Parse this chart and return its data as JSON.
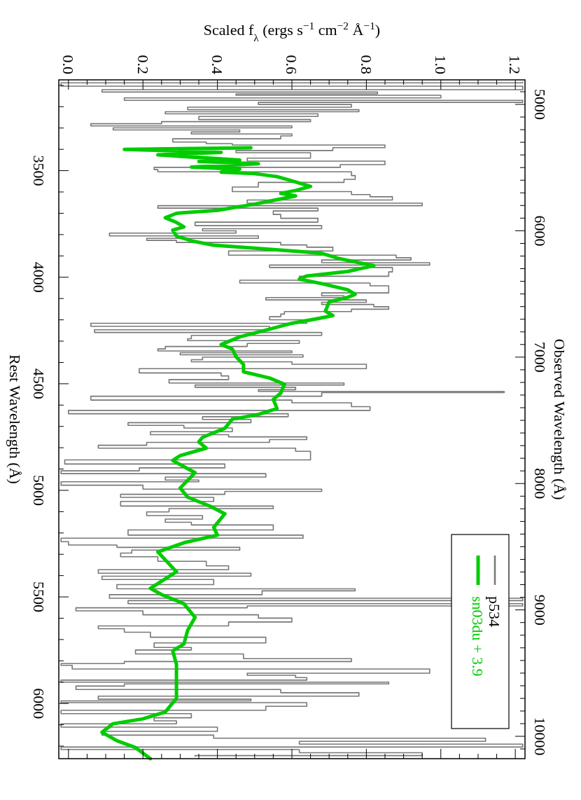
{
  "chart_data": {
    "type": "line",
    "xlabel": "Scaled f$_{λ}$ (ergs s$^{−1}$ cm$^{−2}$ Å$^{−1}$)",
    "ylabel": "Rest Wavelength (Å)",
    "y2label": "Observed Wavelength (Å)",
    "ylim": [
      6259,
      3074
    ],
    "yticks": [
      {
        "value": 3100,
        "label": null
      },
      {
        "value": 3200,
        "label": null
      },
      {
        "value": 3300,
        "label": null
      },
      {
        "value": 3400,
        "label": null
      },
      3500,
      {
        "value": 3600,
        "label": null
      },
      {
        "value": 3700,
        "label": null
      },
      {
        "value": 3800,
        "label": null
      },
      {
        "value": 3900,
        "label": null
      },
      4000,
      {
        "value": 4100,
        "label": null
      },
      {
        "value": 4200,
        "label": null
      },
      {
        "value": 4300,
        "label": null
      },
      {
        "value": 4400,
        "label": null
      },
      4500,
      {
        "value": 4600,
        "label": null
      },
      {
        "value": 4700,
        "label": null
      },
      {
        "value": 4800,
        "label": null
      },
      {
        "value": 4900,
        "label": null
      },
      5000,
      {
        "value": 5100,
        "label": null
      },
      {
        "value": 5200,
        "label": null
      },
      {
        "value": 5300,
        "label": null
      },
      {
        "value": 5400,
        "label": null
      },
      5500,
      {
        "value": 5600,
        "label": null
      },
      {
        "value": 5700,
        "label": null
      },
      {
        "value": 5800,
        "label": null
      },
      {
        "value": 5900,
        "label": null
      },
      6000,
      {
        "value": 6100,
        "label": null
      },
      {
        "value": 6200,
        "label": null
      }
    ],
    "y2lim": [
      10177,
      4806
    ],
    "y2ticks": [
      {
        "value": 4900,
        "label": null
      },
      5000,
      {
        "value": 5100,
        "label": null
      },
      {
        "value": 5200,
        "label": null
      },
      {
        "value": 5300,
        "label": null
      },
      {
        "value": 5400,
        "label": null
      },
      {
        "value": 5500,
        "label": null
      },
      {
        "value": 5600,
        "label": null
      },
      {
        "value": 5700,
        "label": null
      },
      {
        "value": 5800,
        "label": null
      },
      {
        "value": 5900,
        "label": null
      },
      6000,
      {
        "value": 6100,
        "label": null
      },
      {
        "value": 6200,
        "label": null
      },
      {
        "value": 6300,
        "label": null
      },
      {
        "value": 6400,
        "label": null
      },
      {
        "value": 6500,
        "label": null
      },
      {
        "value": 6600,
        "label": null
      },
      {
        "value": 6700,
        "label": null
      },
      {
        "value": 6800,
        "label": null
      },
      {
        "value": 6900,
        "label": null
      },
      7000,
      {
        "value": 7100,
        "label": null
      },
      {
        "value": 7200,
        "label": null
      },
      {
        "value": 7300,
        "label": null
      },
      {
        "value": 7400,
        "label": null
      },
      {
        "value": 7500,
        "label": null
      },
      {
        "value": 7600,
        "label": null
      },
      {
        "value": 7700,
        "label": null
      },
      {
        "value": 7800,
        "label": null
      },
      {
        "value": 7900,
        "label": null
      },
      8000,
      {
        "value": 8100,
        "label": null
      },
      {
        "value": 8200,
        "label": null
      },
      {
        "value": 8300,
        "label": null
      },
      {
        "value": 8400,
        "label": null
      },
      {
        "value": 8500,
        "label": null
      },
      {
        "value": 8600,
        "label": null
      },
      {
        "value": 8700,
        "label": null
      },
      {
        "value": 8800,
        "label": null
      },
      {
        "value": 8900,
        "label": null
      },
      9000,
      {
        "value": 9100,
        "label": null
      },
      {
        "value": 9200,
        "label": null
      },
      {
        "value": 9300,
        "label": null
      },
      {
        "value": 9400,
        "label": null
      },
      {
        "value": 9500,
        "label": null
      },
      {
        "value": 9600,
        "label": null
      },
      {
        "value": 9700,
        "label": null
      },
      {
        "value": 9800,
        "label": null
      },
      {
        "value": 9900,
        "label": null
      },
      10000,
      {
        "value": 10100,
        "label": null
      }
    ],
    "xlim": [
      -0.026,
      1.226
    ],
    "xticks": [
      {
        "value": 0,
        "label": "0.0"
      },
      {
        "value": 0.05,
        "label": null
      },
      {
        "value": 0.1,
        "label": null
      },
      {
        "value": 0.15,
        "label": null
      },
      {
        "value": 0.2,
        "label": "0.2"
      },
      {
        "value": 0.25,
        "label": null
      },
      {
        "value": 0.3,
        "label": null
      },
      {
        "value": 0.35,
        "label": null
      },
      {
        "value": 0.4,
        "label": "0.4"
      },
      {
        "value": 0.45,
        "label": null
      },
      {
        "value": 0.5,
        "label": null
      },
      {
        "value": 0.55,
        "label": null
      },
      {
        "value": 0.6,
        "label": "0.6"
      },
      {
        "value": 0.65,
        "label": null
      },
      {
        "value": 0.7,
        "label": null
      },
      {
        "value": 0.75,
        "label": null
      },
      {
        "value": 0.8,
        "label": "0.8"
      },
      {
        "value": 0.85,
        "label": null
      },
      {
        "value": 0.9,
        "label": null
      },
      {
        "value": 0.95,
        "label": null
      },
      {
        "value": 1.0,
        "label": "1.0"
      },
      {
        "value": 1.05,
        "label": null
      },
      {
        "value": 1.1,
        "label": null
      },
      {
        "value": 1.15,
        "label": null
      },
      {
        "value": 1.2,
        "label": "1.2"
      }
    ],
    "legend": "bottom right",
    "series": [
      {
        "name": "p534",
        "type": "step",
        "color": "#777777",
        "values": [
          3083,
          3093,
          3114,
          3126,
          3136,
          3143,
          3150,
          3167,
          3173,
          3186,
          3193,
          3211,
          3217,
          3230,
          3237,
          3254,
          3266,
          3274,
          3286,
          3294,
          3304,
          3314,
          3323,
          3333,
          3341,
          3360,
          3371,
          3375,
          3384,
          3400,
          3411,
          3421,
          3436,
          3447,
          3464,
          3479,
          3490,
          3500,
          3511,
          3535,
          3546,
          3564,
          3590,
          3607,
          3617,
          3628,
          3647,
          3658,
          3671,
          3681,
          3697,
          3714,
          3733,
          3750,
          3766,
          3779,
          3786,
          3800,
          3812,
          3823,
          3831,
          3843,
          3854,
          3864,
          3890,
          3903,
          3914,
          3924,
          3940,
          3946,
          3963,
          3987,
          4004,
          4024,
          4030,
          4051,
          4063,
          4084,
          4090,
          4101,
          4112,
          4123,
          4133,
          4144,
          4156,
          4166,
          4180,
          4191,
          4209,
          4223,
          4237,
          4256,
          4263,
          4283,
          4294,
          4301,
          4320,
          4330,
          4343,
          4349,
          4359,
          4369,
          4381,
          4393,
          4401,
          4416,
          4442,
          4456,
          4470,
          4491,
          4502,
          4510,
          4523,
          4533,
          4539,
          4544,
          4573,
          4580,
          4599,
          4616,
          4634,
          4647,
          4662,
          4673,
          4692,
          4699,
          4716,
          4734,
          4744,
          4754,
          4770,
          4780,
          4797,
          4807,
          4827,
          4847,
          4867,
          4886,
          4903,
          4914,
          4929,
          4946,
          4957,
          4963,
          4989,
          5000,
          5010,
          5027,
          5039,
          5065,
          5082,
          5089,
          5113,
          5124,
          5146,
          5153,
          5172,
          5200,
          5220,
          5229,
          5253,
          5260,
          5275,
          5286,
          5303,
          5320,
          5346,
          5363,
          5382,
          5396,
          5410,
          5427,
          5457,
          5467,
          5476,
          5503,
          5510,
          5525,
          5539,
          5546,
          5556,
          5575,
          5593,
          5606,
          5629,
          5643,
          5656,
          5675,
          5703,
          5729,
          5745,
          5753,
          5782,
          5798,
          5809,
          5817,
          5825,
          5852,
          5864,
          5872,
          5885,
          5896,
          5904,
          5912,
          5925,
          5944,
          5955,
          5976,
          5984,
          5992,
          6000,
          6027,
          6037,
          6059,
          6075,
          6088,
          6103,
          6119,
          6143,
          6154,
          6172,
          6183,
          6199,
          6210,
          6223,
          6239,
          6250
        ],
        "x": [
          1.22,
          -0.02,
          1.22,
          0.09,
          0.83,
          0.45,
          1.0,
          0.15,
          1.22,
          0.51,
          0.76,
          0.32,
          0.78,
          0.26,
          0.67,
          0.35,
          0.65,
          0.25,
          0.06,
          0.6,
          0.12,
          0.46,
          0.33,
          0.6,
          0.57,
          0.28,
          0.37,
          0.44,
          0.85,
          0.71,
          0.45,
          0.65,
          0.65,
          0.48,
          0.85,
          0.73,
          0.23,
          0.24,
          0.76,
          0.77,
          0.74,
          0.51,
          0.44,
          0.76,
          0.81,
          0.87,
          0.48,
          0.95,
          0.24,
          0.67,
          0.55,
          0.57,
          0.67,
          0.34,
          0.68,
          0.36,
          0.45,
          0.11,
          0.51,
          0.21,
          0.29,
          0.57,
          0.64,
          0.71,
          0.43,
          0.88,
          0.92,
          0.68,
          0.97,
          0.54,
          0.87,
          0.86,
          0.62,
          0.46,
          0.81,
          0.86,
          0.86,
          0.68,
          0.74,
          0.53,
          0.8,
          0.68,
          0.82,
          0.86,
          0.76,
          0.58,
          0.57,
          0.54,
          0.64,
          0.06,
          0.54,
          0.07,
          0.68,
          0.33,
          0.32,
          0.62,
          0.48,
          0.26,
          0.24,
          0.6,
          0.3,
          0.63,
          0.36,
          0.33,
          0.6,
          0.8,
          0.19,
          0.41,
          0.43,
          0.27,
          0.74,
          0.34,
          0.61,
          0.51,
          1.17,
          0.68,
          0.06,
          0.6,
          0.76,
          0.81,
          0.0,
          0.59,
          0.36,
          0.49,
          0.16,
          0.31,
          0.44,
          0.22,
          0.43,
          0.64,
          0.54,
          0.21,
          0.08,
          0.61,
          0.65,
          0.65,
          -0.01,
          0.42,
          0.19,
          -0.02,
          0.53,
          0.26,
          0.35,
          -0.02,
          0.2,
          0.68,
          0.42,
          0.14,
          0.39,
          0.14,
          0.55,
          0.27,
          0.21,
          0.36,
          0.26,
          0.33,
          0.55,
          0.16,
          0.63,
          -0.02,
          0.0,
          0.13,
          0.46,
          0.17,
          0.14,
          0.24,
          0.37,
          0.43,
          0.08,
          0.49,
          0.09,
          0.39,
          0.13,
          0.77,
          0.52,
          0.11,
          1.22,
          0.16,
          1.22,
          0.48,
          0.02,
          0.2,
          0.51,
          0.6,
          0.43,
          0.08,
          0.15,
          0.22,
          0.53,
          0.23,
          0.33,
          0.18,
          0.47,
          0.76,
          0.15,
          -0.02,
          0.01,
          0.97,
          0.48,
          0.61,
          0.64,
          -0.02,
          0.86,
          0.15,
          0.02,
          0.57,
          0.78,
          0.08,
          0.49,
          -0.02,
          0.64,
          0.53,
          -0.02,
          0.33,
          0.23,
          0.29,
          -0.02,
          0.4,
          0.09,
          0.39,
          1.12,
          0.62,
          1.22,
          -0.02,
          0.62,
          0.95,
          0.34
        ]
      },
      {
        "name": "sn03du + 3.9",
        "color": "#00cc00",
        "values": [
          3393,
          3400,
          3414,
          3426,
          3450,
          3457,
          3468,
          3483,
          3493,
          3507,
          3514,
          3528,
          3543,
          3574,
          3593,
          3607,
          3619,
          3636,
          3657,
          3686,
          3700,
          3721,
          3743,
          3764,
          3779,
          3807,
          3829,
          3850,
          3864,
          3879,
          3888,
          3914,
          3946,
          3973,
          3994,
          4009,
          4030,
          4059,
          4080,
          4094,
          4116,
          4159,
          4180,
          4194,
          4216,
          4244,
          4280,
          4316,
          4337,
          4373,
          4409,
          4444,
          4473,
          4502,
          4544,
          4573,
          4616,
          4644,
          4666,
          4709,
          4751,
          4773,
          4802,
          4837,
          4860,
          4917,
          4989,
          5032,
          5074,
          5110,
          5174,
          5210,
          5246,
          5289,
          5382,
          5460,
          5489,
          5532,
          5596,
          5657,
          5721,
          5753,
          5817,
          5896,
          5976,
          6040,
          6072,
          6095,
          6135,
          6175,
          6207,
          6259
        ],
        "x": [
          0.49,
          0.15,
          0.41,
          0.24,
          0.46,
          0.35,
          0.51,
          0.33,
          0.46,
          0.41,
          0.5,
          0.56,
          0.59,
          0.65,
          0.61,
          0.57,
          0.61,
          0.56,
          0.5,
          0.4,
          0.29,
          0.26,
          0.29,
          0.31,
          0.28,
          0.29,
          0.33,
          0.39,
          0.5,
          0.62,
          0.68,
          0.73,
          0.82,
          0.75,
          0.64,
          0.62,
          0.68,
          0.75,
          0.77,
          0.75,
          0.7,
          0.69,
          0.71,
          0.67,
          0.6,
          0.54,
          0.46,
          0.41,
          0.44,
          0.45,
          0.47,
          0.47,
          0.54,
          0.58,
          0.57,
          0.55,
          0.56,
          0.51,
          0.44,
          0.42,
          0.36,
          0.35,
          0.37,
          0.3,
          0.28,
          0.34,
          0.3,
          0.32,
          0.38,
          0.42,
          0.39,
          0.4,
          0.31,
          0.24,
          0.29,
          0.22,
          0.25,
          0.31,
          0.34,
          0.32,
          0.31,
          0.28,
          0.29,
          0.29,
          0.29,
          0.26,
          0.2,
          0.12,
          0.09,
          0.13,
          0.18,
          0.22
        ]
      }
    ]
  }
}
